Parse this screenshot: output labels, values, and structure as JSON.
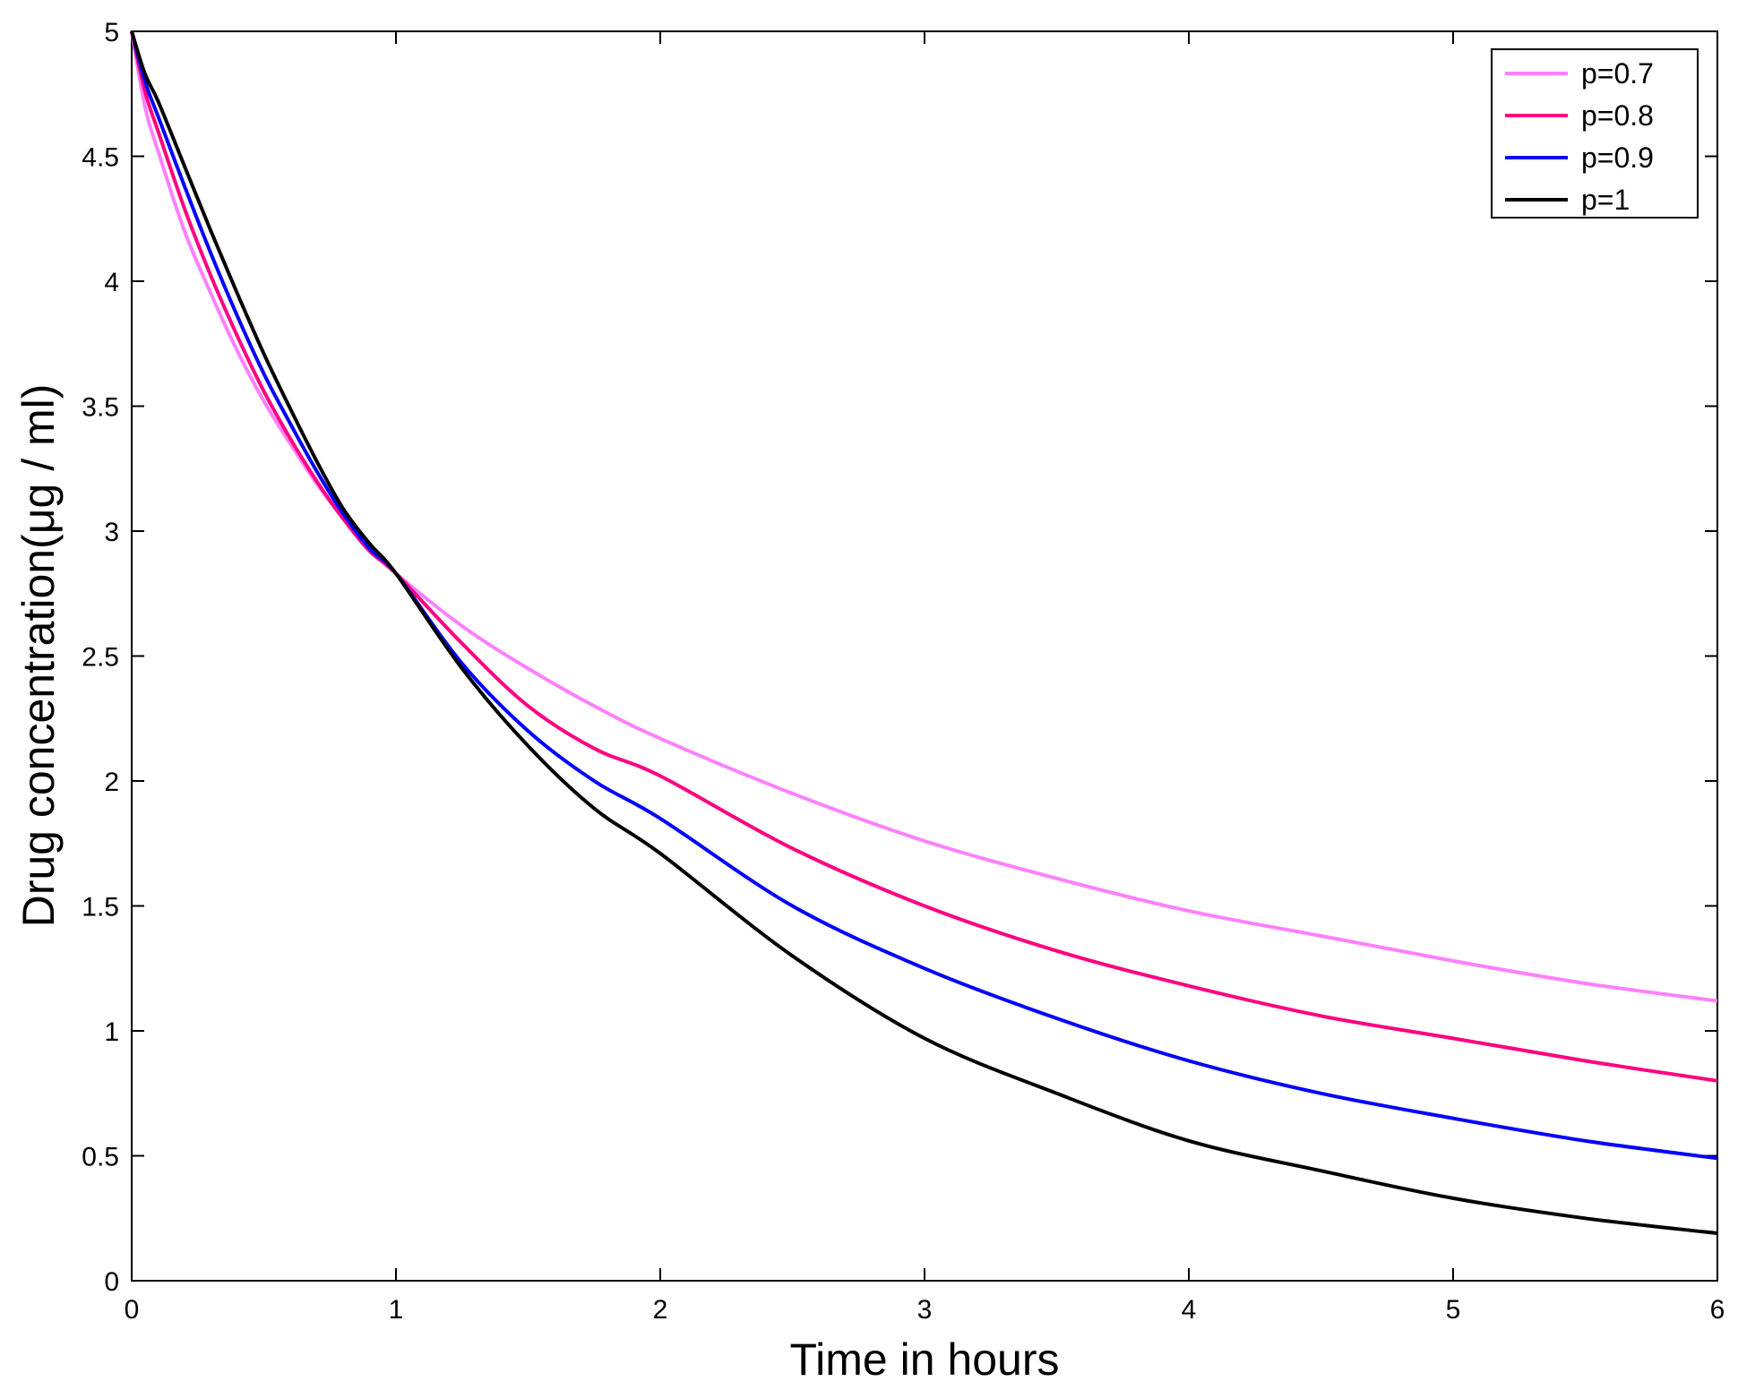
{
  "chart_data": {
    "type": "line",
    "xlabel": "Time in hours",
    "ylabel": "Drug concentration(μg / ml)",
    "xlim": [
      0,
      6
    ],
    "ylim": [
      0,
      5
    ],
    "xticks": [
      "0",
      "1",
      "2",
      "3",
      "4",
      "5",
      "6"
    ],
    "yticks": [
      "0",
      "0.5",
      "1",
      "1.5",
      "2",
      "2.5",
      "3",
      "3.5",
      "4",
      "4.5",
      "5"
    ],
    "grid": false,
    "legend_position": "top-right",
    "x": [
      0,
      0.05,
      0.1,
      0.2,
      0.3,
      0.4,
      0.5,
      0.6,
      0.7,
      0.8,
      0.9,
      1.0,
      1.25,
      1.5,
      1.75,
      2.0,
      2.5,
      3.0,
      3.5,
      4.0,
      4.5,
      5.0,
      5.5,
      6.0
    ],
    "series": [
      {
        "name": "p=0.7",
        "color": "#ff80ff",
        "values": [
          5.0,
          4.7,
          4.52,
          4.2,
          3.95,
          3.72,
          3.52,
          3.35,
          3.19,
          3.05,
          2.93,
          2.83,
          2.62,
          2.45,
          2.3,
          2.17,
          1.95,
          1.76,
          1.61,
          1.48,
          1.38,
          1.28,
          1.19,
          1.12
        ]
      },
      {
        "name": "p=0.8",
        "color": "#ff0080",
        "values": [
          5.0,
          4.76,
          4.6,
          4.29,
          4.02,
          3.78,
          3.56,
          3.37,
          3.2,
          3.05,
          2.92,
          2.83,
          2.55,
          2.3,
          2.13,
          2.02,
          1.73,
          1.5,
          1.32,
          1.18,
          1.06,
          0.97,
          0.88,
          0.8
        ]
      },
      {
        "name": "p=0.9",
        "color": "#0000ff",
        "values": [
          5.0,
          4.8,
          4.66,
          4.38,
          4.11,
          3.86,
          3.63,
          3.43,
          3.24,
          3.07,
          2.93,
          2.83,
          2.47,
          2.2,
          2.0,
          1.85,
          1.5,
          1.25,
          1.05,
          0.88,
          0.75,
          0.65,
          0.56,
          0.49
        ]
      },
      {
        "name": "p=1",
        "color": "#000000",
        "values": [
          5.0,
          4.83,
          4.72,
          4.46,
          4.2,
          3.95,
          3.71,
          3.49,
          3.28,
          3.09,
          2.95,
          2.83,
          2.45,
          2.14,
          1.89,
          1.71,
          1.3,
          0.97,
          0.75,
          0.56,
          0.44,
          0.33,
          0.25,
          0.19
        ]
      }
    ]
  }
}
